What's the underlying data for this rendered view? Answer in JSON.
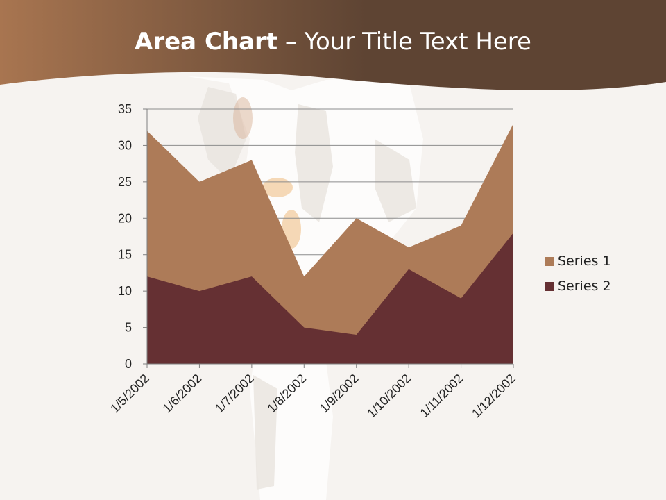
{
  "slide": {
    "title_bold": "Area Chart",
    "title_rest": " – Your Title Text Here"
  },
  "colors": {
    "banner_dark": "#5e4433",
    "banner_light": "#a87550",
    "series1": "#ad7b58",
    "series2": "#653033",
    "gridline": "#8c8c8c"
  },
  "chart_data": {
    "type": "area",
    "x": [
      "1/5/2002",
      "1/6/2002",
      "1/7/2002",
      "1/8/2002",
      "1/9/2002",
      "1/10/2002",
      "1/11/2002",
      "1/12/2002"
    ],
    "series": [
      {
        "name": "Series 1",
        "values": [
          32,
          25,
          28,
          12,
          20,
          16,
          19,
          33
        ]
      },
      {
        "name": "Series 2",
        "values": [
          12,
          10,
          12,
          5,
          4,
          13,
          9,
          18
        ]
      }
    ],
    "ylim": [
      0,
      35
    ],
    "yticks": [
      0,
      5,
      10,
      15,
      20,
      25,
      30,
      35
    ],
    "grid": true,
    "legend": "right"
  }
}
